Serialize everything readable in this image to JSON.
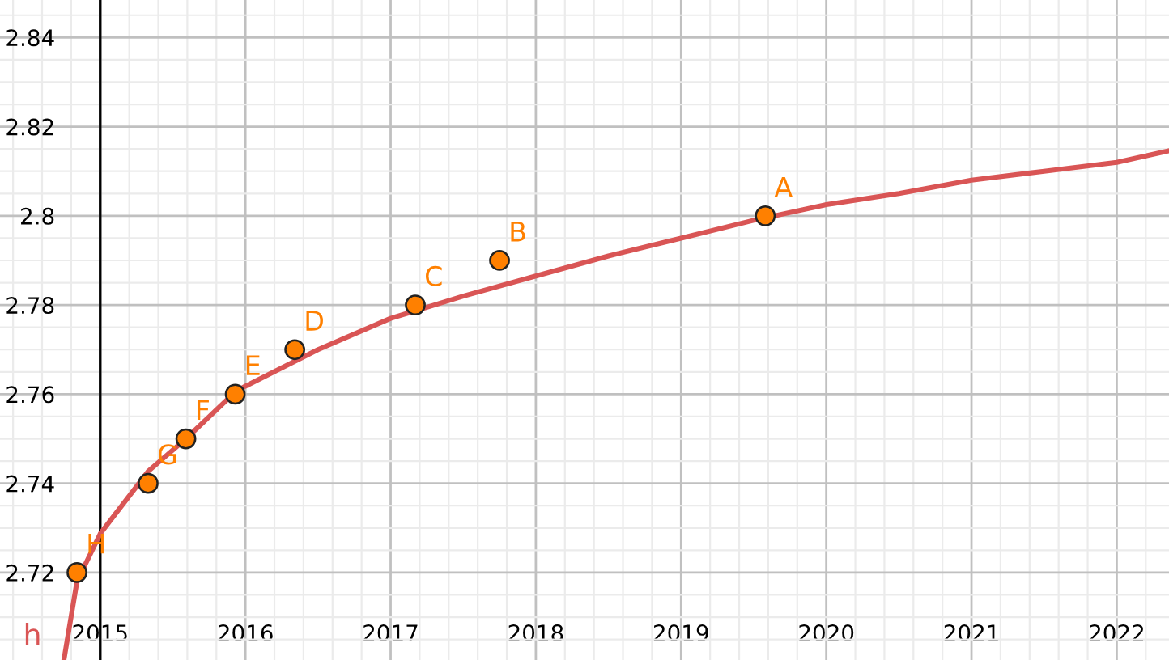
{
  "chart_data": {
    "type": "scatter",
    "series": [
      {
        "name": "h",
        "type": "line",
        "color": "#d95555",
        "marker": "none",
        "x": [
          2014.75,
          2014.84,
          2015.0,
          2015.33,
          2015.59,
          2015.93,
          2016.0,
          2016.5,
          2017.0,
          2017.5,
          2018.0,
          2018.5,
          2019.0,
          2019.5,
          2020.0,
          2020.5,
          2021.0,
          2021.5,
          2022.0,
          2022.36
        ],
        "values": [
          2.7004,
          2.718,
          2.7287,
          2.7427,
          2.75,
          2.7605,
          2.7618,
          2.77,
          2.777,
          2.782,
          2.7865,
          2.791,
          2.795,
          2.799,
          2.8025,
          2.805,
          2.808,
          2.81,
          2.812,
          2.8146
        ]
      },
      {
        "color": "#ff8000",
        "marker": "circle",
        "x": [
          2019.58,
          2017.75,
          2017.17,
          2016.34,
          2015.93,
          2015.59,
          2015.33,
          2014.84
        ],
        "values": [
          2.8,
          2.79,
          2.78,
          2.77,
          2.76,
          2.75,
          2.74,
          2.72
        ]
      }
    ],
    "annotations": [
      {
        "text": "A",
        "x": 2019.58,
        "y": 2.8
      },
      {
        "text": "B",
        "x": 2017.75,
        "y": 2.79
      },
      {
        "text": "C",
        "x": 2017.17,
        "y": 2.78
      },
      {
        "text": "D",
        "x": 2016.34,
        "y": 2.77
      },
      {
        "text": "E",
        "x": 2015.93,
        "y": 2.76
      },
      {
        "text": "F",
        "x": 2015.59,
        "y": 2.75
      },
      {
        "text": "G",
        "x": 2015.33,
        "y": 2.74
      },
      {
        "text": "H",
        "x": 2014.84,
        "y": 2.72
      }
    ],
    "xlim": [
      2014.31,
      2022.36
    ],
    "ylim": [
      2.7004,
      2.8484
    ],
    "xticks": [
      2015,
      2016,
      2017,
      2018,
      2019,
      2020,
      2021,
      2022
    ],
    "yticks": [
      {
        "value": 2.72,
        "label": "2.72"
      },
      {
        "value": 2.74,
        "label": "2.74"
      },
      {
        "value": 2.76,
        "label": "2.76"
      },
      {
        "value": 2.78,
        "label": "2.78"
      },
      {
        "value": 2.8,
        "label": "2.8"
      },
      {
        "value": 2.82,
        "label": "2.82"
      },
      {
        "value": 2.84,
        "label": "2.84"
      }
    ],
    "ref_lines": [
      {
        "axis": "x",
        "value": 2015,
        "color": "#000000"
      }
    ],
    "grid": true,
    "legend": false
  }
}
